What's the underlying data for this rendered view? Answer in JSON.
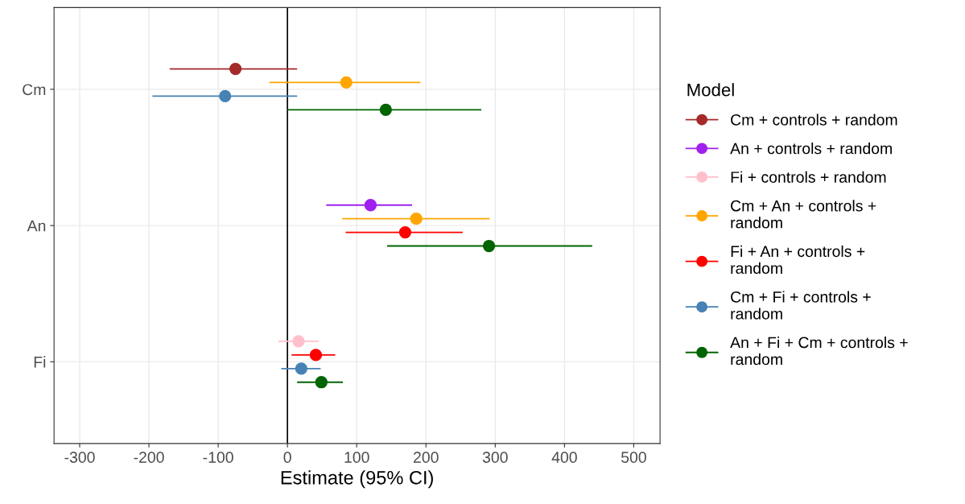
{
  "chart_data": {
    "type": "scatter",
    "orientation": "horizontal",
    "categories": [
      "Cm",
      "An",
      "Fi"
    ],
    "xlabel": "Estimate (95% CI)",
    "legend_title": "Model",
    "legend": "right",
    "grid": true,
    "marker": "circle",
    "xlim": [
      -337,
      538
    ],
    "xticks": [
      -300,
      -200,
      -100,
      0,
      100,
      200,
      300,
      400,
      500
    ],
    "ref_lines": [
      {
        "axis": "x",
        "value": 0,
        "color": "#000000"
      }
    ],
    "series": [
      {
        "name": "Cm + controls + random",
        "color": "#a52a2a",
        "values": [
          -75,
          null,
          null
        ],
        "errors": [
          [
            -170,
            14
          ],
          null,
          null
        ]
      },
      {
        "name": "An + controls + random",
        "color": "#a020f0",
        "values": [
          null,
          120,
          null
        ],
        "errors": [
          null,
          [
            56,
            180
          ],
          null
        ]
      },
      {
        "name": "Fi + controls + random",
        "color": "#ffc0cb",
        "values": [
          null,
          null,
          16
        ],
        "errors": [
          null,
          null,
          [
            -13,
            45
          ]
        ]
      },
      {
        "name": "Cm + An + controls +\nrandom",
        "color": "#ffa500",
        "values": [
          85,
          186,
          null
        ],
        "errors": [
          [
            -26,
            192
          ],
          [
            79,
            292
          ],
          null
        ]
      },
      {
        "name": "Fi + An + controls +\nrandom",
        "color": "#ff0000",
        "values": [
          null,
          170,
          41
        ],
        "errors": [
          null,
          [
            84,
            253
          ],
          [
            6,
            69
          ]
        ]
      },
      {
        "name": "Cm + Fi + controls +\nrandom",
        "color": "#4682b4",
        "values": [
          -90,
          null,
          20
        ],
        "errors": [
          [
            -195,
            14
          ],
          null,
          [
            -9,
            48
          ]
        ]
      },
      {
        "name": "An + Fi + Cm + controls +\nrandom",
        "color": "#006400",
        "values": [
          142,
          291,
          49
        ],
        "errors": [
          [
            0,
            280
          ],
          [
            144,
            440
          ],
          [
            14,
            80
          ]
        ]
      }
    ]
  }
}
